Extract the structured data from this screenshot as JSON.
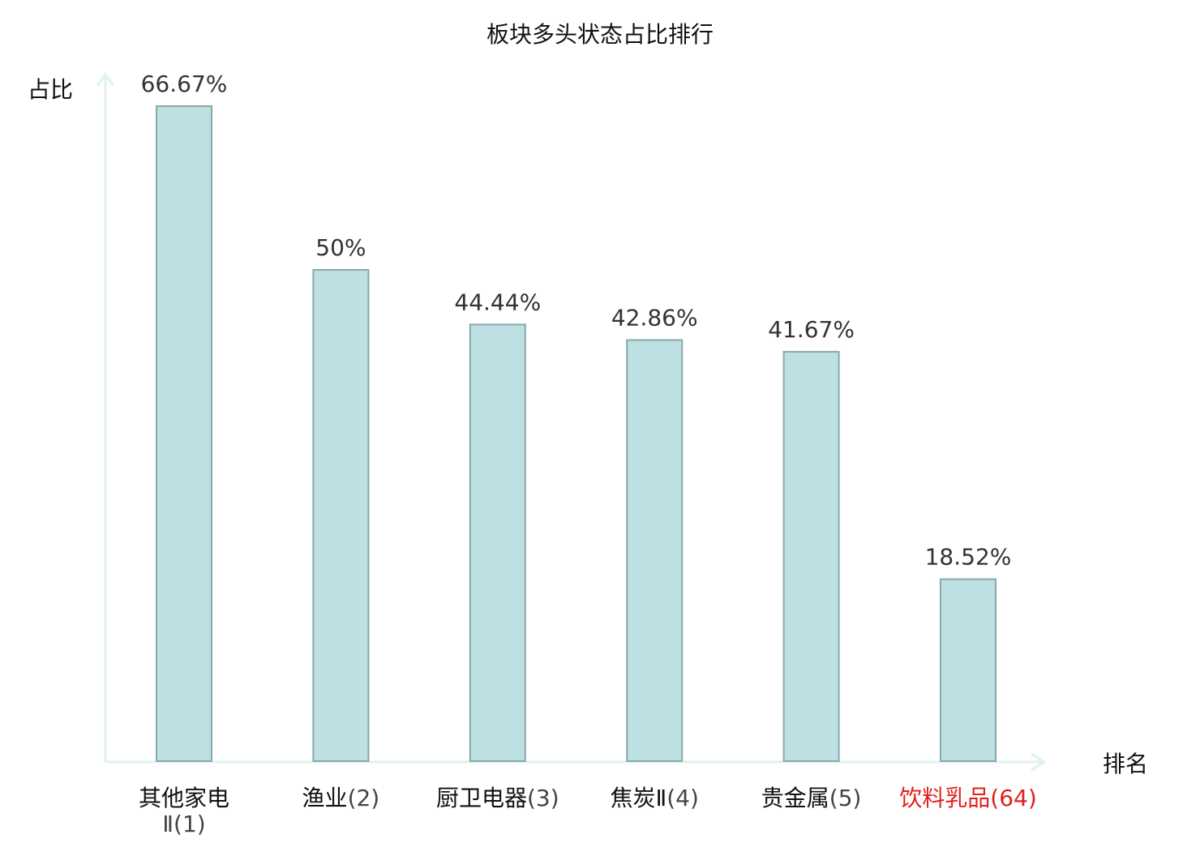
{
  "chart_data": {
    "type": "bar",
    "title": "板块多头状态占比排行",
    "ylabel": "占比",
    "xlabel": "排名",
    "ylim": [
      0,
      70
    ],
    "grid": false,
    "categories": [
      {
        "name": "其他家电Ⅱ",
        "rank": "(1)",
        "highlight": false
      },
      {
        "name": "渔业",
        "rank": "(2)",
        "highlight": false
      },
      {
        "name": "厨卫电器",
        "rank": "(3)",
        "highlight": false
      },
      {
        "name": "焦炭Ⅱ",
        "rank": "(4)",
        "highlight": false
      },
      {
        "name": "贵金属",
        "rank": "(5)",
        "highlight": false
      },
      {
        "name": "饮料乳品",
        "rank": "(64)",
        "highlight": true
      }
    ],
    "values": [
      66.67,
      50,
      44.44,
      42.86,
      41.67,
      18.52
    ],
    "value_labels": [
      "66.67%",
      "50%",
      "44.44%",
      "42.86%",
      "41.67%",
      "18.52%"
    ],
    "colors": {
      "bar_fill": "#bde0e2",
      "bar_stroke": "#8aa8aa",
      "axis": "#dff2ef",
      "label_normal": "#111111",
      "rank_normal": "#444444",
      "label_highlight": "#e0201c"
    }
  }
}
